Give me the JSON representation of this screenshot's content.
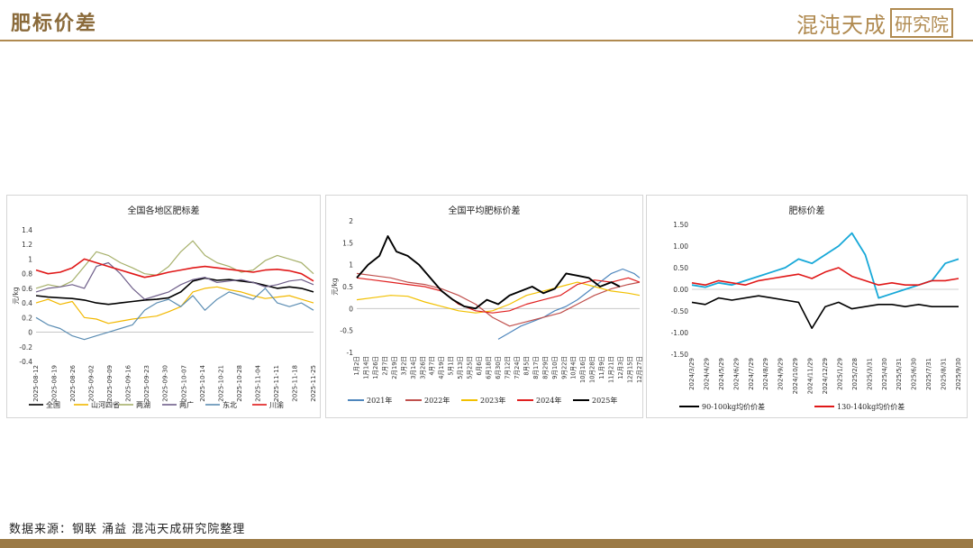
{
  "header": {
    "title": "肥标价差",
    "logo_text": "混沌天成",
    "logo_seal": "研究院"
  },
  "footer": {
    "source": "数据来源：钢联  涌益  混沌天成研究院整理"
  },
  "chart_data": [
    {
      "type": "line",
      "title": "全国各地区肥标差",
      "ylabel": "元/kg",
      "ylim": [
        -0.4,
        1.4
      ],
      "yticks": [
        "1.4",
        "1.2",
        "1",
        "0.8",
        "0.6",
        "0.4",
        "0.2",
        "0",
        "-0.2",
        "-0.4"
      ],
      "ytick_values": [
        1.4,
        1.2,
        1.0,
        0.8,
        0.6,
        0.4,
        0.2,
        0,
        -0.2,
        -0.4
      ],
      "xticks": [
        "2025-08-12",
        "2025-08-19",
        "2025-08-26",
        "2025-09-02",
        "2025-09-09",
        "2025-09-16",
        "2025-09-23",
        "2025-09-30",
        "2025-10-07",
        "2025-10-14",
        "2025-10-21",
        "2025-10-28",
        "2025-11-04",
        "2025-11-11",
        "2025-11-18",
        "2025-11-25"
      ],
      "series": [
        {
          "name": "全国",
          "color": "#000000",
          "width": 1.6,
          "values": [
            0.5,
            0.48,
            0.47,
            0.46,
            0.44,
            0.4,
            0.38,
            0.4,
            0.42,
            0.44,
            0.45,
            0.47,
            0.55,
            0.7,
            0.74,
            0.71,
            0.72,
            0.7,
            0.68,
            0.64,
            0.6,
            0.62,
            0.6,
            0.55
          ]
        },
        {
          "name": "山河四省",
          "color": "#f2b800",
          "width": 1.2,
          "values": [
            0.4,
            0.45,
            0.38,
            0.42,
            0.2,
            0.18,
            0.12,
            0.15,
            0.18,
            0.2,
            0.22,
            0.28,
            0.35,
            0.55,
            0.6,
            0.62,
            0.58,
            0.55,
            0.5,
            0.46,
            0.48,
            0.5,
            0.45,
            0.4
          ]
        },
        {
          "name": "两湖",
          "color": "#a6b06a",
          "width": 1.2,
          "values": [
            0.6,
            0.65,
            0.62,
            0.7,
            0.9,
            1.1,
            1.05,
            0.95,
            0.88,
            0.8,
            0.78,
            0.9,
            1.1,
            1.25,
            1.05,
            0.95,
            0.9,
            0.82,
            0.85,
            0.98,
            1.05,
            1.0,
            0.95,
            0.8
          ]
        },
        {
          "name": "两广",
          "color": "#6f5f8a",
          "width": 1.2,
          "values": [
            0.55,
            0.6,
            0.62,
            0.65,
            0.6,
            0.9,
            0.95,
            0.8,
            0.6,
            0.45,
            0.5,
            0.55,
            0.65,
            0.72,
            0.75,
            0.68,
            0.7,
            0.72,
            0.68,
            0.62,
            0.65,
            0.7,
            0.72,
            0.65
          ]
        },
        {
          "name": "东北",
          "color": "#5b8db3",
          "width": 1.2,
          "values": [
            0.2,
            0.1,
            0.05,
            -0.05,
            -0.1,
            -0.05,
            0.0,
            0.05,
            0.1,
            0.3,
            0.4,
            0.45,
            0.35,
            0.5,
            0.3,
            0.45,
            0.55,
            0.5,
            0.45,
            0.6,
            0.4,
            0.35,
            0.4,
            0.3
          ]
        },
        {
          "name": "川渝",
          "color": "#e01818",
          "width": 1.6,
          "values": [
            0.85,
            0.8,
            0.82,
            0.88,
            1.0,
            0.95,
            0.9,
            0.85,
            0.8,
            0.75,
            0.78,
            0.82,
            0.85,
            0.88,
            0.9,
            0.88,
            0.86,
            0.84,
            0.82,
            0.85,
            0.86,
            0.84,
            0.8,
            0.7
          ]
        }
      ]
    },
    {
      "type": "line",
      "title": "全国平均肥标价差",
      "ylabel": "元/kg",
      "ylim": [
        -1,
        2
      ],
      "yticks": [
        "2",
        "1.5",
        "1",
        "0.5",
        "0",
        "-0.5",
        "-1"
      ],
      "ytick_values": [
        2,
        1.5,
        1,
        0.5,
        0,
        -0.5,
        -1
      ],
      "xticks": [
        "1月2日",
        "1月14日",
        "1月26日",
        "2月7日",
        "2月19日",
        "3月2日",
        "3月14日",
        "3月26日",
        "4月7日",
        "4月19日",
        "5月1日",
        "5月13日",
        "5月25日",
        "6月6日",
        "6月18日",
        "6月30日",
        "7月12日",
        "7月24日",
        "8月5日",
        "8月17日",
        "8月29日",
        "9月10日",
        "9月22日",
        "10月4日",
        "10月16日",
        "10月28日",
        "11月9日",
        "11月21日",
        "12月3日",
        "12月15日",
        "12月27日"
      ],
      "series": [
        {
          "name": "2021年",
          "color": "#4e86bd",
          "width": 1.2,
          "x": [
            0.5,
            0.54,
            0.58,
            0.62,
            0.66,
            0.7,
            0.74,
            0.78,
            0.82,
            0.86,
            0.9,
            0.94,
            0.98,
            1.0
          ],
          "values": [
            -0.7,
            -0.55,
            -0.4,
            -0.3,
            -0.2,
            -0.05,
            0.05,
            0.2,
            0.4,
            0.6,
            0.8,
            0.9,
            0.8,
            0.7
          ]
        },
        {
          "name": "2022年",
          "color": "#c0504d",
          "width": 1.2,
          "x": [
            0.0,
            0.06,
            0.12,
            0.18,
            0.24,
            0.3,
            0.36,
            0.42,
            0.48,
            0.54,
            0.6,
            0.66,
            0.72,
            0.78,
            0.84,
            0.9,
            0.96,
            1.0
          ],
          "values": [
            0.8,
            0.75,
            0.7,
            0.6,
            0.55,
            0.45,
            0.3,
            0.1,
            -0.2,
            -0.4,
            -0.3,
            -0.2,
            -0.1,
            0.1,
            0.3,
            0.45,
            0.55,
            0.6
          ]
        },
        {
          "name": "2023年",
          "color": "#f2c000",
          "width": 1.2,
          "x": [
            0.0,
            0.06,
            0.12,
            0.18,
            0.24,
            0.3,
            0.36,
            0.42,
            0.48,
            0.54,
            0.6,
            0.66,
            0.72,
            0.78,
            0.84,
            0.9,
            0.96,
            1.0
          ],
          "values": [
            0.2,
            0.25,
            0.3,
            0.28,
            0.15,
            0.05,
            -0.05,
            -0.1,
            -0.05,
            0.1,
            0.3,
            0.4,
            0.5,
            0.6,
            0.5,
            0.4,
            0.35,
            0.3
          ]
        },
        {
          "name": "2024年",
          "color": "#e02020",
          "width": 1.2,
          "x": [
            0.0,
            0.06,
            0.12,
            0.18,
            0.24,
            0.3,
            0.36,
            0.42,
            0.48,
            0.54,
            0.6,
            0.66,
            0.72,
            0.78,
            0.84,
            0.9,
            0.96,
            1.0
          ],
          "values": [
            0.7,
            0.65,
            0.6,
            0.55,
            0.5,
            0.4,
            0.1,
            -0.05,
            -0.1,
            -0.05,
            0.1,
            0.2,
            0.3,
            0.55,
            0.65,
            0.6,
            0.7,
            0.6
          ]
        },
        {
          "name": "2025年",
          "color": "#000000",
          "width": 1.9,
          "x": [
            0.0,
            0.04,
            0.08,
            0.11,
            0.14,
            0.18,
            0.22,
            0.26,
            0.3,
            0.34,
            0.38,
            0.42,
            0.46,
            0.5,
            0.54,
            0.58,
            0.62,
            0.66,
            0.7,
            0.74,
            0.78,
            0.82,
            0.86,
            0.9,
            0.93
          ],
          "values": [
            0.7,
            1.0,
            1.2,
            1.65,
            1.3,
            1.2,
            1.0,
            0.7,
            0.4,
            0.2,
            0.05,
            0.0,
            0.2,
            0.1,
            0.3,
            0.4,
            0.5,
            0.35,
            0.45,
            0.8,
            0.75,
            0.7,
            0.5,
            0.6,
            0.5
          ]
        }
      ]
    },
    {
      "type": "line",
      "title": "肥标价差",
      "ylim": [
        -1.5,
        1.5
      ],
      "yticks": [
        "1.50",
        "1.00",
        "0.50",
        "0.00",
        "-0.50",
        "-1.00",
        "-1.50"
      ],
      "ytick_values": [
        1.5,
        1.0,
        0.5,
        0,
        -0.5,
        -1.0,
        -1.5
      ],
      "xticks": [
        "2024/3/29",
        "2024/4/29",
        "2024/5/29",
        "2024/6/29",
        "2024/7/29",
        "2024/8/29",
        "2024/9/29",
        "2024/10/29",
        "2024/11/29",
        "2024/12/29",
        "2025/1/29",
        "2025/2/28",
        "2025/3/31",
        "2025/4/30",
        "2025/5/31",
        "2025/6/30",
        "2025/7/31",
        "2025/8/31",
        "2025/9/30"
      ],
      "series": [
        {
          "name": "",
          "color": "#17a8d8",
          "width": 1.8,
          "values": [
            0.1,
            0.05,
            0.15,
            0.1,
            0.2,
            0.3,
            0.4,
            0.5,
            0.7,
            0.6,
            0.8,
            1.0,
            1.3,
            0.8,
            -0.2,
            -0.1,
            0.0,
            0.1,
            0.2,
            0.6,
            0.7
          ]
        },
        {
          "name": "90-100kg均价价差",
          "color": "#000000",
          "width": 1.6,
          "values": [
            -0.3,
            -0.35,
            -0.2,
            -0.25,
            -0.2,
            -0.15,
            -0.2,
            -0.25,
            -0.3,
            -0.9,
            -0.4,
            -0.3,
            -0.45,
            -0.4,
            -0.35,
            -0.35,
            -0.4,
            -0.35,
            -0.4,
            -0.4,
            -0.4
          ]
        },
        {
          "name": "130-140kg均价价差",
          "color": "#e01818",
          "width": 1.6,
          "values": [
            0.15,
            0.1,
            0.2,
            0.15,
            0.1,
            0.2,
            0.25,
            0.3,
            0.35,
            0.25,
            0.4,
            0.5,
            0.3,
            0.2,
            0.1,
            0.15,
            0.1,
            0.1,
            0.2,
            0.2,
            0.25
          ]
        }
      ]
    }
  ]
}
